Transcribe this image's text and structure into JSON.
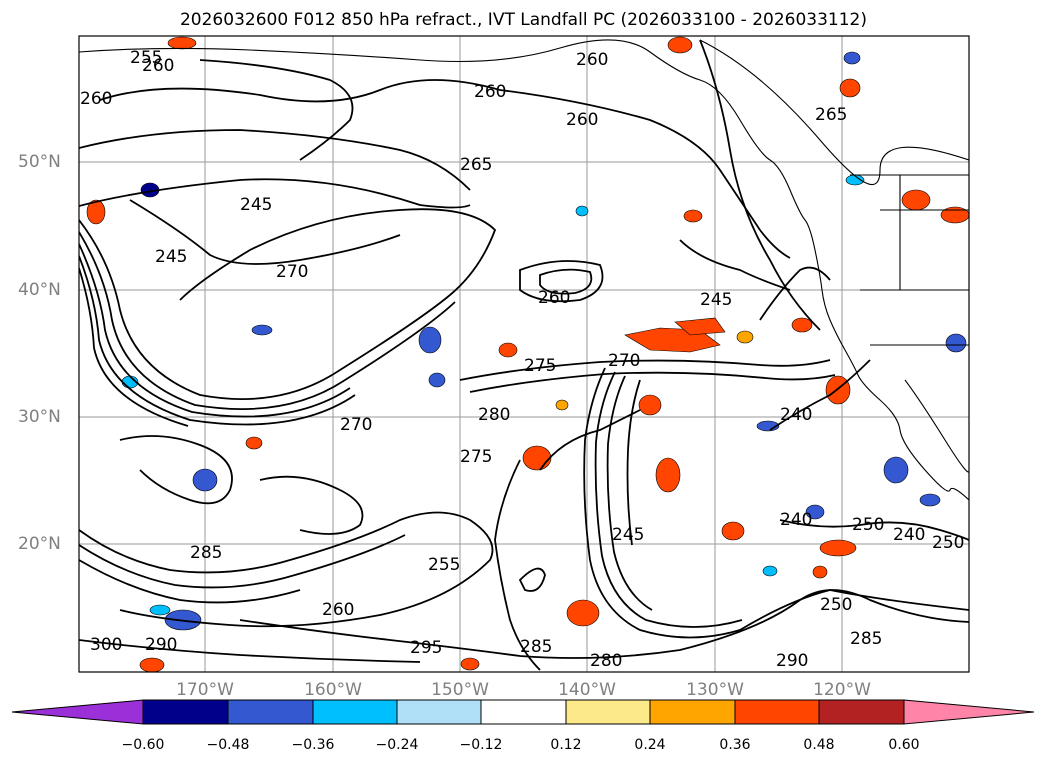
{
  "title": "2026032600 F012 850 hPa refract., IVT Landfall PC (2026033100 - 2026033112)",
  "map": {
    "lat_labels": [
      "50°N",
      "40°N",
      "30°N",
      "20°N"
    ],
    "lon_labels": [
      "170°W",
      "160°W",
      "150°W",
      "140°W",
      "130°W",
      "120°W"
    ],
    "contour_labels": [
      "255",
      "260",
      "260",
      "260",
      "260",
      "260",
      "265",
      "265",
      "245",
      "245",
      "270",
      "260",
      "275",
      "270",
      "280",
      "275",
      "270",
      "245",
      "240",
      "240",
      "245",
      "250",
      "285",
      "290",
      "295",
      "300",
      "285",
      "280",
      "290",
      "250",
      "285",
      "255",
      "260",
      "240",
      "250"
    ]
  },
  "colorbar": {
    "colors": [
      "#9b30d8",
      "#00008b",
      "#3458d0",
      "#00bfff",
      "#b0e0f8",
      "#ffffff",
      "#fce98a",
      "#ffa500",
      "#ff4500",
      "#b22222",
      "#ff85a8"
    ],
    "tick_labels": [
      "−0.60",
      "−0.48",
      "−0.36",
      "−0.24",
      "−0.12",
      "0.12",
      "0.24",
      "0.36",
      "0.48",
      "0.60"
    ]
  }
}
